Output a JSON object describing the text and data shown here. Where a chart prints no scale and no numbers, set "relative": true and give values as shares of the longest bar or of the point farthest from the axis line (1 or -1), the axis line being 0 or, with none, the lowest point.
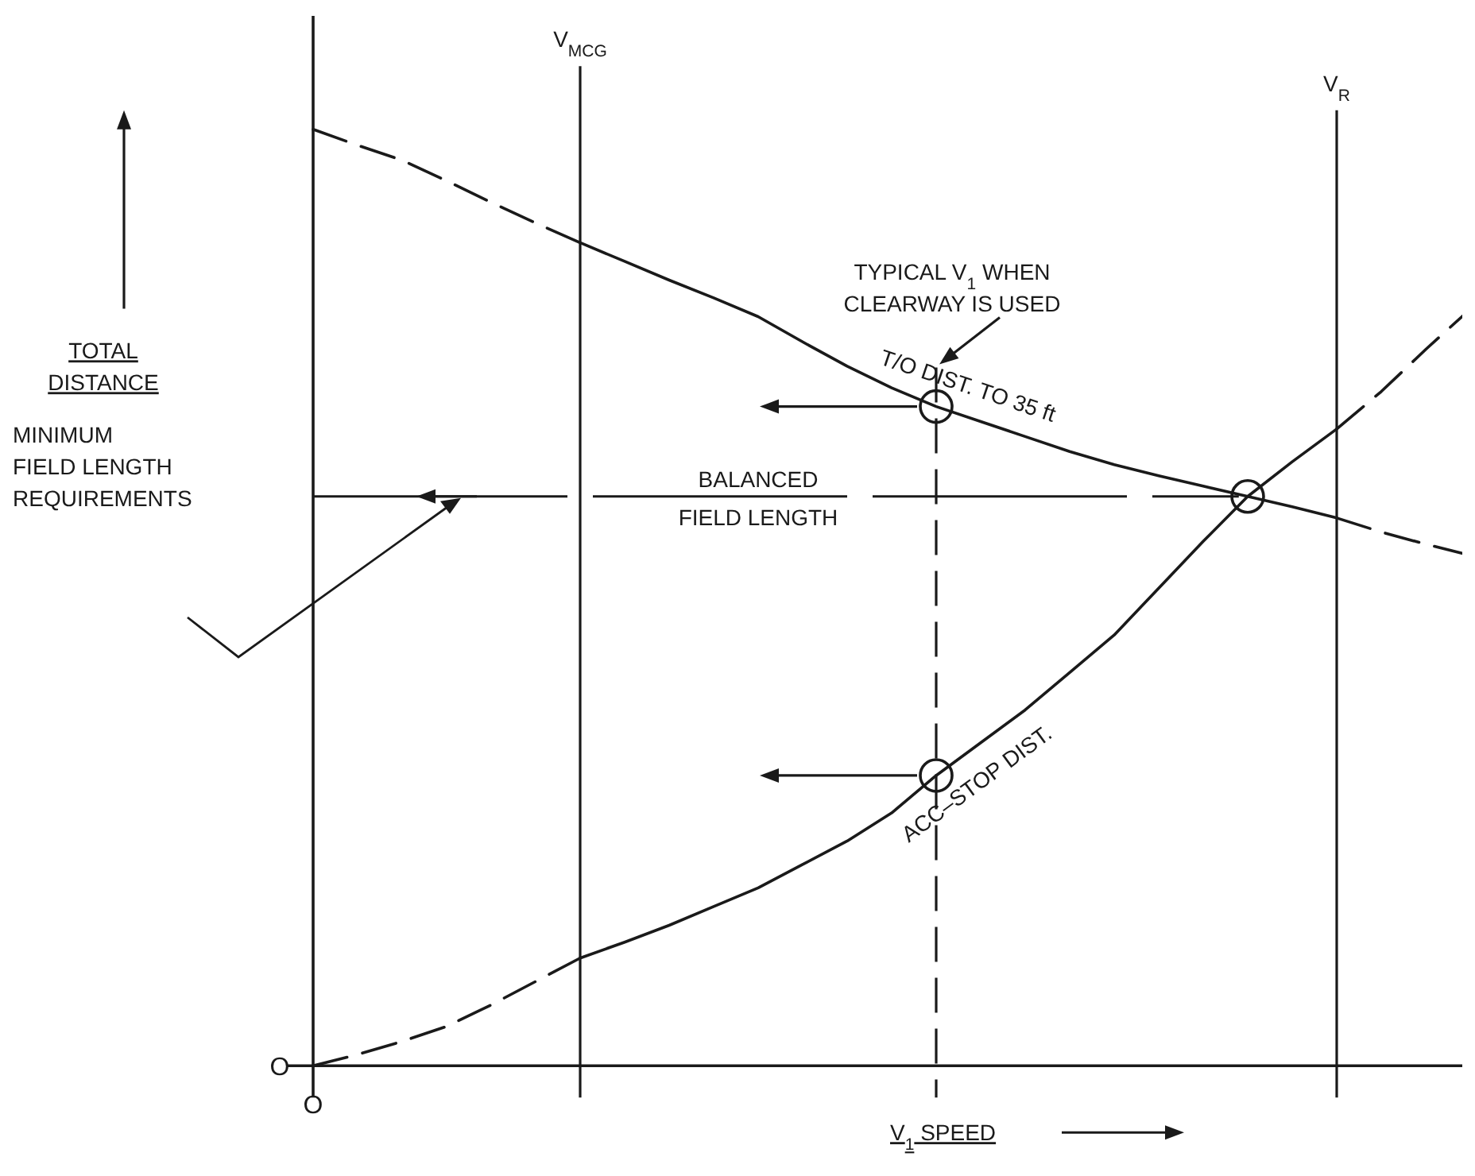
{
  "chart_data": {
    "type": "line",
    "relative": true,
    "xlabel": "V$_{1}$ SPEED",
    "categories": [
      null,
      null,
      null,
      null,
      null,
      null,
      null,
      null,
      null,
      null,
      null,
      null,
      null,
      null,
      null,
      null,
      null,
      null,
      null,
      null,
      null,
      null,
      null,
      null,
      null,
      null,
      null
    ],
    "series": [
      {
        "color": "#1a1a1a",
        "line_style": "dashed",
        "values": [
          1.0,
          0.983,
          0.967,
          0.945,
          0.922,
          0.9,
          0.879,
          null,
          null,
          null,
          null,
          null,
          null,
          null,
          null,
          null,
          null,
          null,
          null,
          null,
          null,
          null,
          null,
          null,
          null,
          null,
          null
        ]
      },
      {
        "name": "T/O DIST. TO 35 ft",
        "color": "#1a1a1a",
        "line_style": "solid",
        "values": [
          null,
          null,
          null,
          null,
          null,
          null,
          0.879,
          0.859,
          0.839,
          0.82,
          0.8,
          0.773,
          0.747,
          0.724,
          0.704,
          0.688,
          0.672,
          0.656,
          0.642,
          0.63,
          0.619,
          0.608,
          0.597,
          0.585,
          null,
          null,
          null
        ]
      },
      {
        "color": "#1a1a1a",
        "line_style": "dashed",
        "values": [
          null,
          null,
          null,
          null,
          null,
          null,
          null,
          null,
          null,
          null,
          null,
          null,
          null,
          null,
          null,
          null,
          null,
          null,
          null,
          null,
          null,
          null,
          null,
          0.585,
          0.57,
          0.557,
          0.545
        ]
      },
      {
        "color": "#1a1a1a",
        "line_style": "dashed",
        "values": [
          0,
          0.012,
          0.026,
          0.042,
          0.065,
          0.09,
          0.115,
          null,
          null,
          null,
          null,
          null,
          null,
          null,
          null,
          null,
          null,
          null,
          null,
          null,
          null,
          null,
          null,
          null,
          null,
          null,
          null
        ]
      },
      {
        "name": "ACC–STOP DIST.",
        "color": "#1a1a1a",
        "line_style": "solid",
        "values": [
          null,
          null,
          null,
          null,
          null,
          null,
          0.115,
          0.132,
          0.15,
          0.17,
          0.19,
          0.215,
          0.24,
          0.27,
          0.31,
          0.345,
          0.38,
          0.42,
          0.46,
          0.51,
          0.56,
          0.608,
          0.645,
          0.68,
          null,
          null,
          null
        ]
      },
      {
        "color": "#1a1a1a",
        "line_style": "dashed",
        "values": [
          null,
          null,
          null,
          null,
          null,
          null,
          null,
          null,
          null,
          null,
          null,
          null,
          null,
          null,
          null,
          null,
          null,
          null,
          null,
          null,
          null,
          null,
          null,
          0.68,
          0.72,
          0.765,
          0.808
        ]
      }
    ],
    "ref_lines": [
      {
        "axis": "y",
        "value": 0.608,
        "label": "BALANCED\nFIELD LENGTH",
        "line_style": "dashed"
      }
    ],
    "annotations": [
      "MINIMUM\nFIELD LENGTH\nREQUIREMENTS",
      "O",
      "O",
      "TOTAL\nDISTANCE",
      "V$_{MCG}$",
      "TYPICAL V$_{1}$ WHEN\nCLEARWAY IS USED",
      "V$_{R}$"
    ]
  }
}
